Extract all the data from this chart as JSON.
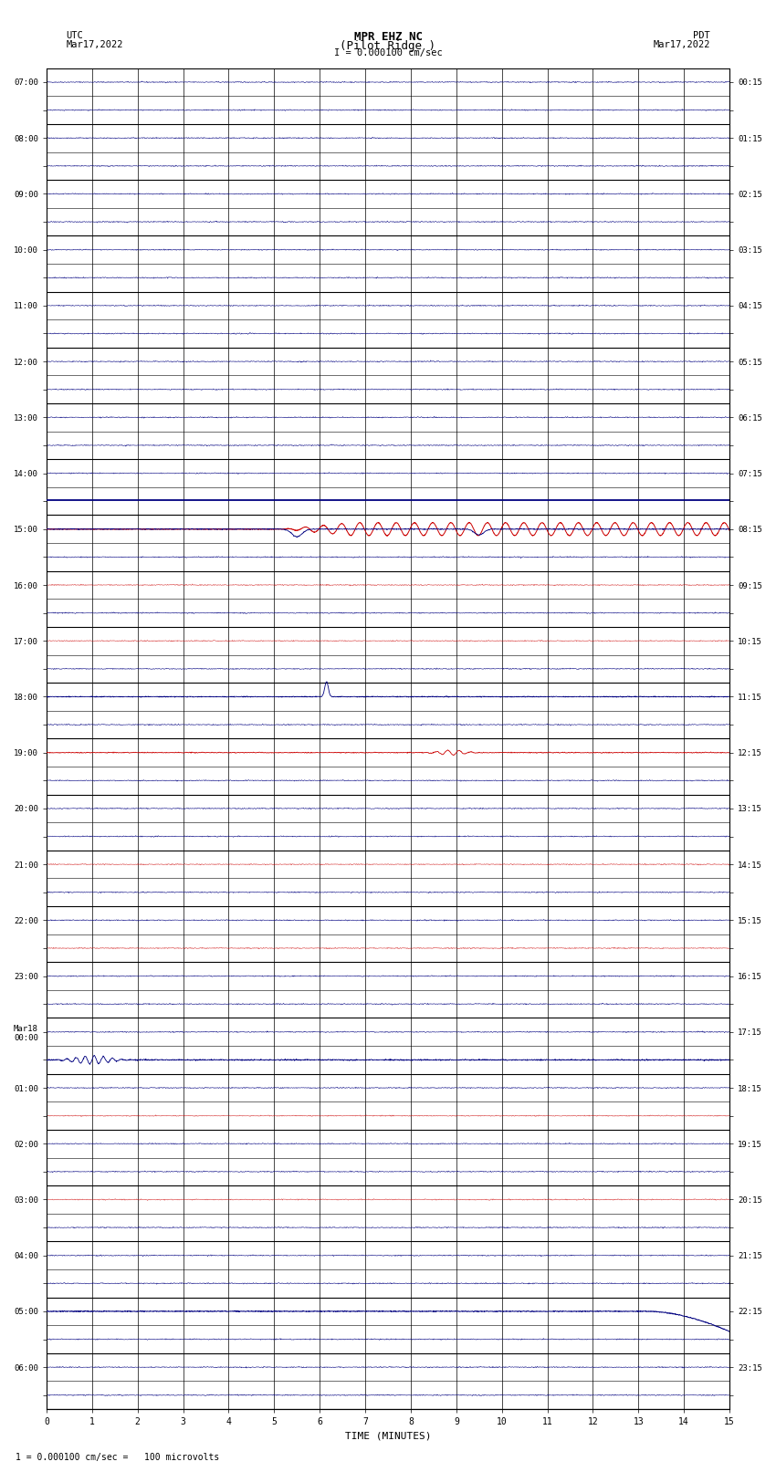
{
  "title_line1": "MPR EHZ NC",
  "title_line2": "(Pilot Ridge )",
  "title_scale": "I = 0.000100 cm/sec",
  "left_header_line1": "UTC",
  "left_header_line2": "Mar17,2022",
  "right_header_line1": "PDT",
  "right_header_line2": "Mar17,2022",
  "xlabel": "TIME (MINUTES)",
  "footnote": "1 = 0.000100 cm/sec =   100 microvolts",
  "n_rows": 48,
  "n_cols_minutes": 15,
  "background_color": "#ffffff",
  "grid_color": "#000000",
  "trace_color_normal": "#000080",
  "trace_color_red": "#cc0000"
}
